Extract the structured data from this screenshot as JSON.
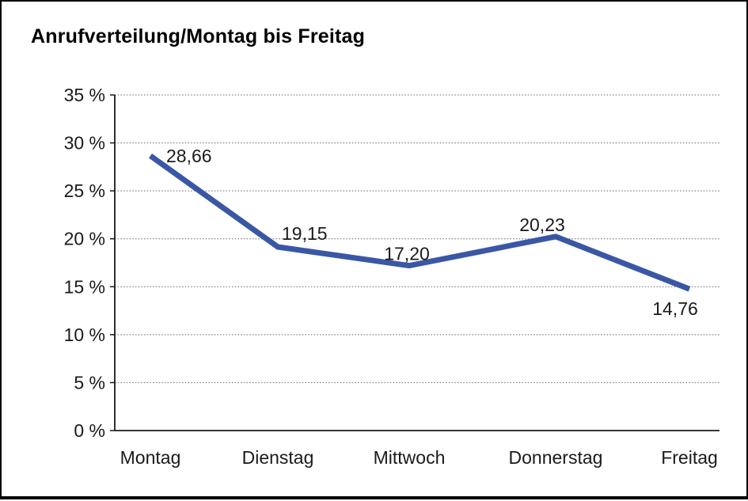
{
  "chart_data": {
    "type": "line",
    "title": "Anrufverteilung/Montag bis Freitag",
    "categories": [
      "Montag",
      "Dienstag",
      "Mittwoch",
      "Donnerstag",
      "Freitag"
    ],
    "series": [
      {
        "name": "Anrufverteilung",
        "values": [
          28.66,
          19.15,
          17.2,
          20.23,
          14.76
        ]
      }
    ],
    "value_labels": [
      "28,66",
      "19,15",
      "17,20",
      "20,23",
      "14,76"
    ],
    "y_tick_labels": [
      "0 %",
      "5 %",
      "10 %",
      "15 %",
      "20 %",
      "25 %",
      "30 %",
      "35 %"
    ],
    "ylim": [
      0,
      35
    ],
    "y_tick_step": 5,
    "xlabel": "",
    "ylabel": "",
    "legend": "none",
    "grid": "horizontal dotted",
    "line_color": "#3A57A6",
    "text_color": "#1A1A1A",
    "grid_color": "#666666",
    "axis_color": "#1A1A1A",
    "background_color": "#FFFFFF",
    "frame_color": "#000000"
  }
}
